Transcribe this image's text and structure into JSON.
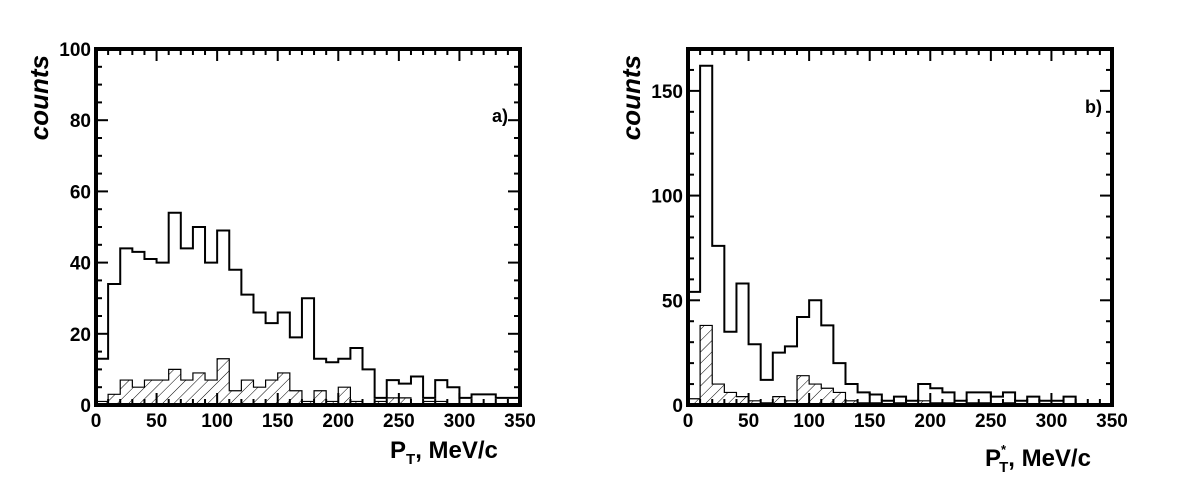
{
  "chart_data": [
    {
      "type": "histogram",
      "annotation": "a)",
      "ylabel": "counts",
      "xlabel_main": "P",
      "xlabel_sub": "T",
      "xlabel_sup": "",
      "xlabel_tail": ", MeV/c",
      "xlim": [
        0,
        350
      ],
      "ylim": [
        0,
        100
      ],
      "xticks": [
        0,
        50,
        100,
        150,
        200,
        250,
        300,
        350
      ],
      "yticks": [
        0,
        20,
        40,
        60,
        80,
        100
      ],
      "bin_width": 10,
      "series": [
        {
          "style": "open",
          "values": [
            13,
            34,
            44,
            43,
            41,
            40,
            54,
            44,
            50,
            40,
            49,
            38,
            31,
            26,
            23,
            26,
            19,
            30,
            13,
            12,
            13,
            16,
            10,
            2,
            7,
            6,
            8,
            2,
            7,
            5,
            2,
            3,
            3,
            2,
            2
          ]
        },
        {
          "style": "hatched",
          "values": [
            1,
            3,
            7,
            5,
            7,
            7,
            10,
            7,
            9,
            7,
            13,
            4,
            7,
            5,
            7,
            9,
            4,
            1,
            4,
            1,
            5,
            1,
            0,
            1,
            2,
            2,
            0,
            1,
            1,
            0,
            0,
            0,
            0,
            0,
            0
          ]
        }
      ]
    },
    {
      "type": "histogram",
      "annotation": "b)",
      "ylabel": "counts",
      "xlabel_main": "P",
      "xlabel_sub": "T",
      "xlabel_sup": "*",
      "xlabel_tail": ", MeV/c",
      "xlim": [
        0,
        350
      ],
      "ylim": [
        0,
        170
      ],
      "xticks": [
        0,
        50,
        100,
        150,
        200,
        250,
        300,
        350
      ],
      "yticks": [
        0,
        50,
        100,
        150
      ],
      "bin_width": 10,
      "series": [
        {
          "style": "open",
          "values": [
            54,
            162,
            76,
            35,
            58,
            29,
            12,
            25,
            28,
            42,
            50,
            38,
            20,
            10,
            6,
            5,
            2,
            4,
            2,
            10,
            8,
            6,
            2,
            6,
            6,
            4,
            6,
            2,
            4,
            2,
            2,
            4,
            0,
            0,
            0
          ]
        },
        {
          "style": "hatched",
          "values": [
            3,
            38,
            10,
            6,
            4,
            2,
            1,
            4,
            2,
            14,
            10,
            8,
            6,
            2,
            1,
            1,
            0,
            1,
            0,
            2,
            1,
            1,
            0,
            1,
            1,
            0,
            1,
            0,
            0,
            0,
            0,
            0,
            0,
            0,
            0
          ]
        }
      ]
    }
  ]
}
